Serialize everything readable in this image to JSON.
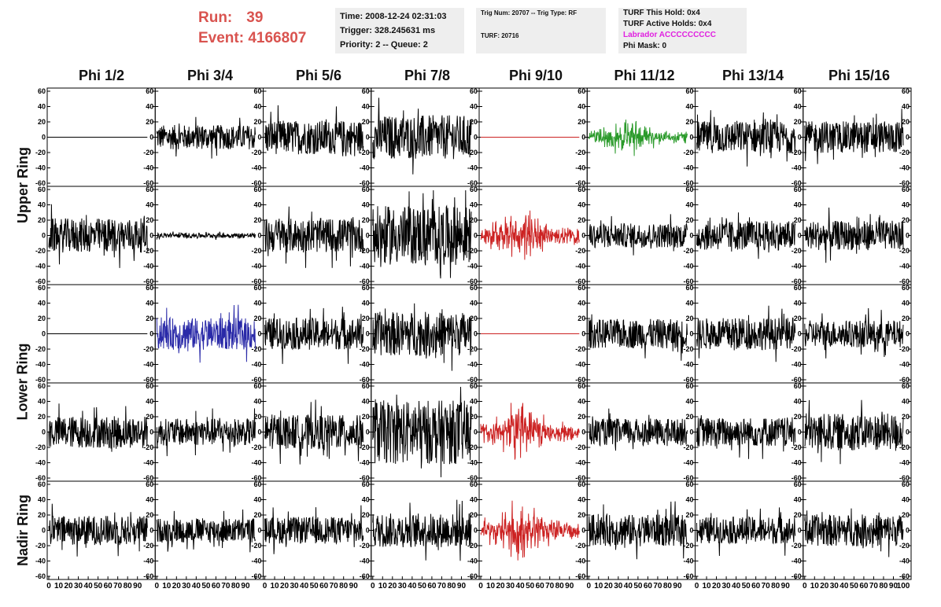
{
  "header": {
    "run_label": "Run:",
    "run_value": "39",
    "event_label": "Event:",
    "event_value": "4166807",
    "time": "Time: 2008-12-24 02:31:03",
    "trigger": "Trigger: 328.245631 ms",
    "priority": "Priority: 2 -- Queue: 2",
    "trig_num": "Trig Num: 20707 -- Trig Type: RF",
    "turf": "TURF: 20716",
    "turf_this_hold": "TURF This Hold: 0x4",
    "turf_active_holds": "TURF Active Holds: 0x4",
    "labrador": "Labrador ACCCCCCCCC",
    "phi_mask": "Phi Mask: 0"
  },
  "columns": [
    "Phi 1/2",
    "Phi 3/4",
    "Phi 5/6",
    "Phi 7/8",
    "Phi 9/10",
    "Phi 11/12",
    "Phi 13/14",
    "Phi 15/16"
  ],
  "rows": [
    "Upper Ring",
    "Lower Ring",
    "Nadir Ring"
  ],
  "y_axis": {
    "min": -60,
    "max": 60,
    "ticks": [
      "60",
      "40",
      "20",
      "0",
      "-20",
      "-40",
      "-60"
    ]
  },
  "x_axis": {
    "min": 0,
    "max": 100,
    "ticks": [
      "0",
      "10",
      "20",
      "30",
      "40",
      "50",
      "60",
      "70",
      "80",
      "90",
      "100"
    ]
  },
  "colors": {
    "black": "#000000",
    "red": "#cc2222",
    "green": "#2a9a2a",
    "blue": "#2a2aa8",
    "run_text": "#d9534f",
    "labrador": "#e020e0"
  },
  "panels": [
    [
      {
        "color": "black",
        "amp": 0,
        "style": "flat"
      },
      {
        "color": "black",
        "amp": 10,
        "style": "noise"
      },
      {
        "color": "black",
        "amp": 14,
        "style": "noise"
      },
      {
        "color": "black",
        "amp": 18,
        "style": "noise"
      },
      {
        "color": "red",
        "amp": 0,
        "style": "flat"
      },
      {
        "color": "green",
        "amp": 15,
        "style": "pulse"
      },
      {
        "color": "black",
        "amp": 13,
        "style": "noise"
      },
      {
        "color": "black",
        "amp": 13,
        "style": "noise"
      }
    ],
    [
      {
        "color": "black",
        "amp": 14,
        "style": "noise"
      },
      {
        "color": "black",
        "amp": 2,
        "style": "noise"
      },
      {
        "color": "black",
        "amp": 14,
        "style": "noise"
      },
      {
        "color": "black",
        "amp": 24,
        "style": "noise"
      },
      {
        "color": "red",
        "amp": 22,
        "style": "pulse"
      },
      {
        "color": "black",
        "amp": 10,
        "style": "noise"
      },
      {
        "color": "black",
        "amp": 12,
        "style": "noise"
      },
      {
        "color": "black",
        "amp": 12,
        "style": "noise"
      }
    ],
    [
      {
        "color": "black",
        "amp": 0,
        "style": "flat"
      },
      {
        "color": "blue",
        "amp": 13,
        "style": "noise"
      },
      {
        "color": "black",
        "amp": 13,
        "style": "noise"
      },
      {
        "color": "black",
        "amp": 18,
        "style": "noise"
      },
      {
        "color": "red",
        "amp": 0,
        "style": "flat"
      },
      {
        "color": "black",
        "amp": 12,
        "style": "noise"
      },
      {
        "color": "black",
        "amp": 13,
        "style": "noise"
      },
      {
        "color": "black",
        "amp": 11,
        "style": "noise"
      }
    ],
    [
      {
        "color": "black",
        "amp": 13,
        "style": "noise"
      },
      {
        "color": "black",
        "amp": 11,
        "style": "noise"
      },
      {
        "color": "black",
        "amp": 14,
        "style": "noise"
      },
      {
        "color": "black",
        "amp": 26,
        "style": "noise"
      },
      {
        "color": "red",
        "amp": 24,
        "style": "pulse"
      },
      {
        "color": "black",
        "amp": 11,
        "style": "noise"
      },
      {
        "color": "black",
        "amp": 12,
        "style": "noise"
      },
      {
        "color": "black",
        "amp": 15,
        "style": "noise"
      }
    ],
    [
      {
        "color": "black",
        "amp": 12,
        "style": "noise"
      },
      {
        "color": "black",
        "amp": 10,
        "style": "noise"
      },
      {
        "color": "black",
        "amp": 11,
        "style": "noise"
      },
      {
        "color": "black",
        "amp": 14,
        "style": "noise"
      },
      {
        "color": "red",
        "amp": 26,
        "style": "pulse"
      },
      {
        "color": "black",
        "amp": 13,
        "style": "noise"
      },
      {
        "color": "black",
        "amp": 11,
        "style": "noise"
      },
      {
        "color": "black",
        "amp": 13,
        "style": "noise"
      }
    ]
  ]
}
